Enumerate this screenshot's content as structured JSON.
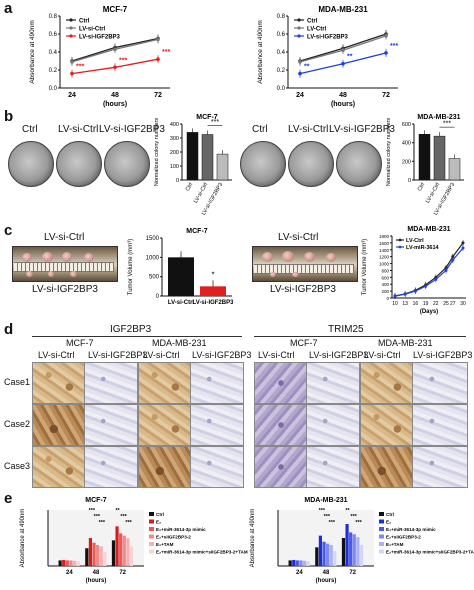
{
  "panels": {
    "a": "a",
    "b": "b",
    "c": "c",
    "d": "d",
    "e": "e"
  },
  "panel_a": {
    "left_title": "MCF-7",
    "right_title": "MDA-MB-231",
    "ylabel": "Absorbance at 490nm",
    "xlabel": "(hours)",
    "xticks": [
      "24",
      "48",
      "72"
    ],
    "yticks": [
      "0.0",
      "0.2",
      "0.4",
      "0.6",
      "0.8"
    ],
    "left_legend": [
      "Ctrl",
      "LV-si-Ctrl",
      "LV-si-IGF2BP3"
    ],
    "right_legend": [
      "Ctrl",
      "LV-Ctrl",
      "LV-si-IGF2BP3"
    ],
    "left_stars": [
      "***",
      "***",
      "***"
    ],
    "right_stars": [
      "**",
      "**",
      "***"
    ]
  },
  "panel_b": {
    "left_dishes": [
      "Ctrl",
      "LV-si-Ctrl",
      "LV-si-IGF2BP3"
    ],
    "right_dishes": [
      "Ctrl",
      "LV-si-Ctrl",
      "LV-si-IGF2BP3"
    ],
    "left_chart_title": "MCF-7",
    "right_chart_title": "MDA-MB-231",
    "ylabel": "Normalized colony numbers",
    "categories": [
      "Ctrl",
      "LV-si-Ctrl",
      "LV-si-IGF2BP3"
    ],
    "yticks": [
      "0",
      "100",
      "200",
      "300",
      "400"
    ],
    "right_yticks": [
      "0",
      "200",
      "400",
      "600"
    ],
    "sig": "***"
  },
  "panel_c": {
    "left_photo_top": "LV-si-Ctrl",
    "left_photo_bottom": "LV-si-IGF2BP3",
    "right_photo_top": "LV-si-Ctrl",
    "right_photo_bottom": "LV-si-IGF2BP3",
    "bar_title": "MCF-7",
    "bar_ylabel": "Tumor Volume (mm³)",
    "bar_yticks": [
      "0",
      "500",
      "1000",
      "1500"
    ],
    "bar_categories": [
      "LV-si-Ctrl",
      "LV-si-IGF2BP3"
    ],
    "bar_sig": "*",
    "line_title": "MDA-MB-231",
    "line_ylabel": "Tumor Volume (mm³)",
    "line_xlabel": "(Days)",
    "line_legend": [
      "LV-Ctrl",
      "LV-miR-3614"
    ],
    "line_xticks": [
      "10",
      "13",
      "16",
      "19",
      "22",
      "25",
      "27",
      "30"
    ],
    "line_yticks": [
      "0",
      "200",
      "400",
      "600",
      "800",
      "1000",
      "1200",
      "1400",
      "1600",
      "1800"
    ]
  },
  "panel_d": {
    "left_group": "IGF2BP3",
    "right_group": "TRIM25",
    "left_lines": [
      "MCF-7",
      "MDA-MB-231"
    ],
    "right_lines": [
      "MCF-7",
      "MDA-MB-231"
    ],
    "col_labels": [
      "LV-si-Ctrl",
      "LV-si-IGF2BP3",
      "LV-si-Ctrl",
      "LV-si-IGF2BP3"
    ],
    "rows": [
      "Case1",
      "Case2",
      "Case3"
    ]
  },
  "panel_e": {
    "left_title": "MCF-7",
    "right_title": "MDA-MB-231",
    "ylabel": "Absorbance at 490nm",
    "xlabel": "(hours)",
    "xticks": [
      "24",
      "48",
      "72"
    ],
    "legend": [
      "Ctrl",
      "E₂",
      "E₂+miR-3614-3p mimic",
      "E₂+siIGF2BP3-2",
      "E₂+TAM",
      "E₂+miR-3614-3p mimic+siIGF2BP3-2+TAM"
    ],
    "stars": [
      "***",
      "***",
      "***",
      "**",
      "***",
      "***"
    ]
  },
  "chart_data": [
    {
      "type": "line",
      "panel": "a",
      "title": "MCF-7",
      "x": [
        24,
        48,
        72
      ],
      "ylim": [
        0,
        0.8
      ],
      "series": [
        {
          "name": "Ctrl",
          "values": [
            0.3,
            0.45,
            0.55
          ],
          "color": "#222222"
        },
        {
          "name": "LV-si-Ctrl",
          "values": [
            0.29,
            0.43,
            0.54
          ],
          "color": "#777777"
        },
        {
          "name": "LV-si-IGF2BP3",
          "values": [
            0.16,
            0.23,
            0.32
          ],
          "color": "#e02020"
        }
      ]
    },
    {
      "type": "line",
      "panel": "a",
      "title": "MDA-MB-231",
      "x": [
        24,
        48,
        72
      ],
      "ylim": [
        0,
        0.8
      ],
      "series": [
        {
          "name": "Ctrl",
          "values": [
            0.3,
            0.44,
            0.6
          ],
          "color": "#222222"
        },
        {
          "name": "LV-Ctrl",
          "values": [
            0.29,
            0.42,
            0.58
          ],
          "color": "#777777"
        },
        {
          "name": "LV-si-IGF2BP3",
          "values": [
            0.16,
            0.27,
            0.39
          ],
          "color": "#2040e0"
        }
      ]
    },
    {
      "type": "bar",
      "panel": "b",
      "title": "MCF-7",
      "categories": [
        "Ctrl",
        "LV-si-Ctrl",
        "LV-si-IGF2BP3"
      ],
      "values": [
        340,
        325,
        185
      ],
      "ylim": [
        0,
        400
      ],
      "colors": [
        "#111111",
        "#666666",
        "#bbbbbb"
      ]
    },
    {
      "type": "bar",
      "panel": "b",
      "title": "MDA-MB-231",
      "categories": [
        "Ctrl",
        "LV-si-Ctrl",
        "LV-si-IGF2BP3"
      ],
      "values": [
        490,
        470,
        230
      ],
      "ylim": [
        0,
        600
      ],
      "colors": [
        "#111111",
        "#666666",
        "#bbbbbb"
      ]
    },
    {
      "type": "bar",
      "panel": "c",
      "title": "MCF-7",
      "categories": [
        "LV-si-Ctrl",
        "LV-si-IGF2BP3"
      ],
      "values": [
        1000,
        250
      ],
      "ylim": [
        0,
        1500
      ],
      "colors": [
        "#111111",
        "#e02020"
      ]
    },
    {
      "type": "line",
      "panel": "c",
      "title": "MDA-MB-231",
      "x": [
        10,
        13,
        16,
        19,
        22,
        25,
        27,
        30
      ],
      "ylim": [
        0,
        1800
      ],
      "series": [
        {
          "name": "LV-Ctrl",
          "values": [
            60,
            120,
            220,
            380,
            600,
            880,
            1200,
            1600
          ],
          "color": "#222222"
        },
        {
          "name": "LV-miR-3614",
          "values": [
            55,
            110,
            200,
            340,
            540,
            800,
            1100,
            1450
          ],
          "color": "#2040e0"
        }
      ]
    },
    {
      "type": "bar",
      "panel": "e",
      "title": "MCF-7",
      "categories": [
        "24",
        "48",
        "72"
      ],
      "ylim": [
        0,
        1.2
      ],
      "series": [
        {
          "name": "Ctrl",
          "values": [
            0.12,
            0.38,
            0.55
          ],
          "color": "#111111"
        },
        {
          "name": "E₂",
          "values": [
            0.13,
            0.6,
            0.85
          ],
          "color": "#d81c1c"
        },
        {
          "name": "E₂+miR-3614-3p mimic",
          "values": [
            0.12,
            0.5,
            0.7
          ],
          "color": "#e85a5a"
        },
        {
          "name": "E₂+siIGF2BP3-2",
          "values": [
            0.12,
            0.45,
            0.65
          ],
          "color": "#f08a8a"
        },
        {
          "name": "E₂+TAM",
          "values": [
            0.11,
            0.42,
            0.6
          ],
          "color": "#f5b0b0"
        },
        {
          "name": "E₂+miR-3614-3p mimic+siIGF2BP3-2+TAM",
          "values": [
            0.1,
            0.3,
            0.42
          ],
          "color": "#fad4d4"
        }
      ]
    },
    {
      "type": "bar",
      "panel": "e",
      "title": "MDA-MB-231",
      "categories": [
        "24",
        "48",
        "72"
      ],
      "ylim": [
        0,
        1.2
      ],
      "series": [
        {
          "name": "Ctrl",
          "values": [
            0.12,
            0.4,
            0.6
          ],
          "color": "#111111"
        },
        {
          "name": "E₂",
          "values": [
            0.13,
            0.65,
            0.9
          ],
          "color": "#1c2ed8"
        },
        {
          "name": "E₂+miR-3614-3p mimic",
          "values": [
            0.12,
            0.52,
            0.72
          ],
          "color": "#4a5ae6"
        },
        {
          "name": "E₂+siIGF2BP3-2",
          "values": [
            0.12,
            0.48,
            0.68
          ],
          "color": "#7d89ee"
        },
        {
          "name": "E₂+TAM",
          "values": [
            0.11,
            0.45,
            0.62
          ],
          "color": "#aab2f4"
        },
        {
          "name": "E₂+miR-3614-3p mimic+siIGF2BP3-2+TAM",
          "values": [
            0.1,
            0.32,
            0.45
          ],
          "color": "#d2d7fa"
        }
      ]
    }
  ]
}
